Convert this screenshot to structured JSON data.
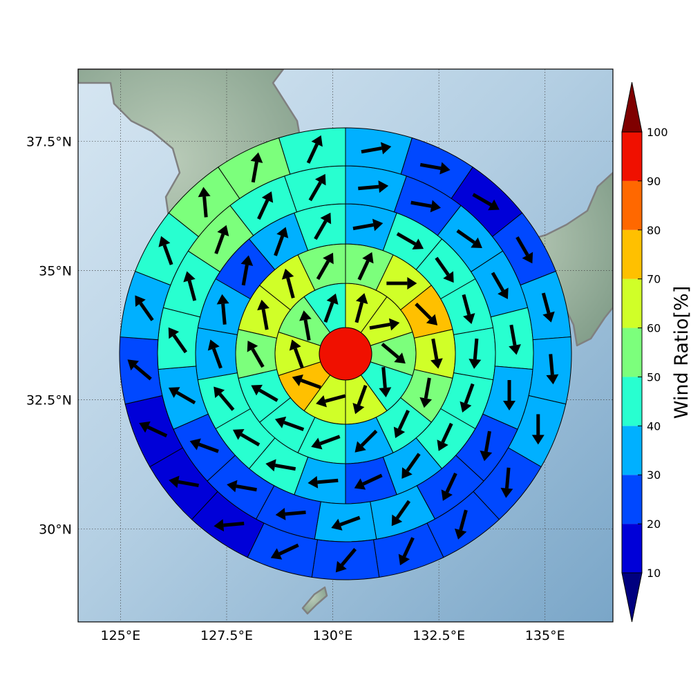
{
  "map": {
    "lon_ticks": [
      "125°E",
      "127.5°E",
      "130°E",
      "132.5°E",
      "135°E"
    ],
    "lat_ticks": [
      "37.5°N",
      "35°N",
      "32.5°N",
      "30°N"
    ],
    "extent": {
      "lon_min": 124.0,
      "lon_max": 136.6,
      "lat_min": 28.2,
      "lat_max": 38.9
    },
    "grid_lons": [
      125,
      127.5,
      130,
      132.5,
      135
    ],
    "grid_lats": [
      37.5,
      35,
      32.5,
      30
    ],
    "land_color": "#8fa894",
    "coast_color": "#808080"
  },
  "colorbar": {
    "label": "Wind Ratio[%]",
    "ticks": [
      "10",
      "20",
      "30",
      "40",
      "50",
      "60",
      "70",
      "80",
      "90",
      "100"
    ],
    "colors": [
      "#0000d8",
      "#0048ff",
      "#00b0ff",
      "#28ffd0",
      "#7cff7c",
      "#d0ff28",
      "#ffc000",
      "#ff6800",
      "#f01000"
    ],
    "under_color": "#00007f",
    "over_color": "#7f0000"
  },
  "chart_data": {
    "type": "polar_grid",
    "center": {
      "lon": 130.0,
      "lat": 33.3
    },
    "units": "Wind Ratio [%]",
    "rings": [
      {
        "ring": 0,
        "sector_values": [
          95
        ],
        "arrow_dir_deg": []
      },
      {
        "ring": 1,
        "sector_values": [
          65,
          65,
          55,
          45,
          65,
          65,
          72,
          65,
          55,
          45
        ],
        "arrow_dir_deg": [
          15,
          80,
          130,
          175,
          200,
          255,
          290,
          340,
          350,
          20
        ]
      },
      {
        "ring": 2,
        "sector_values": [
          55,
          65,
          75,
          65,
          55,
          45,
          35,
          45,
          45,
          45,
          55,
          65,
          65,
          55
        ],
        "arrow_dir_deg": [
          25,
          90,
          135,
          170,
          190,
          205,
          225,
          250,
          290,
          300,
          330,
          350,
          345,
          30
        ]
      },
      {
        "ring": 3,
        "sector_values": [
          35,
          45,
          45,
          45,
          45,
          45,
          45,
          35,
          25,
          35,
          45,
          45,
          45,
          35,
          35,
          25,
          35,
          45
        ],
        "arrow_dir_deg": [
          80,
          120,
          145,
          165,
          185,
          200,
          205,
          215,
          245,
          265,
          280,
          300,
          320,
          340,
          355,
          10,
          20,
          30
        ]
      },
      {
        "ring": 4,
        "sector_values": [
          35,
          25,
          35,
          35,
          45,
          35,
          25,
          25,
          35,
          35,
          25,
          25,
          25,
          35,
          45,
          45,
          55,
          45,
          45
        ],
        "arrow_dir_deg": [
          85,
          100,
          125,
          150,
          170,
          180,
          190,
          205,
          215,
          250,
          265,
          280,
          290,
          300,
          325,
          345,
          20,
          25,
          30
        ]
      },
      {
        "ring": 5,
        "sector_values": [
          35,
          25,
          15,
          25,
          35,
          35,
          35,
          25,
          25,
          25,
          25,
          25,
          15,
          15,
          15,
          25,
          35,
          45,
          55,
          55,
          45
        ],
        "arrow_dir_deg": [
          80,
          100,
          120,
          150,
          165,
          175,
          180,
          185,
          195,
          205,
          220,
          245,
          265,
          280,
          295,
          310,
          325,
          340,
          355,
          10,
          25
        ]
      }
    ],
    "colorbar_range": [
      10,
      100
    ],
    "colorbar_step": 10
  }
}
